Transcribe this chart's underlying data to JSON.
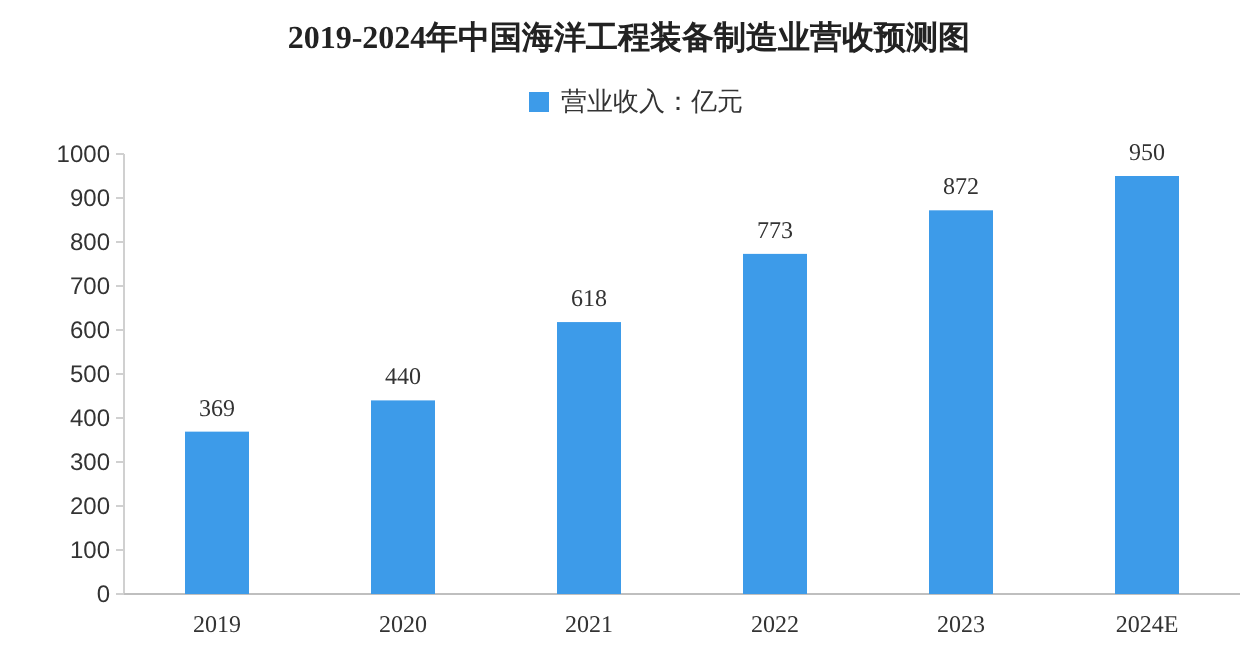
{
  "chart_data": {
    "type": "bar",
    "title": "2019-2024年中国海洋工程装备制造业营收预测图",
    "categories": [
      "2019",
      "2020",
      "2021",
      "2022",
      "2023",
      "2024E"
    ],
    "series": [
      {
        "name": "营业收入：亿元",
        "color": "#3d9be9",
        "values": [
          369,
          440,
          618,
          773,
          872,
          950
        ]
      }
    ],
    "ylim": [
      0,
      1000
    ],
    "yticks": [
      0,
      100,
      200,
      300,
      400,
      500,
      600,
      700,
      800,
      900,
      1000
    ],
    "data_labels": true,
    "legend": "top",
    "grid": false
  }
}
